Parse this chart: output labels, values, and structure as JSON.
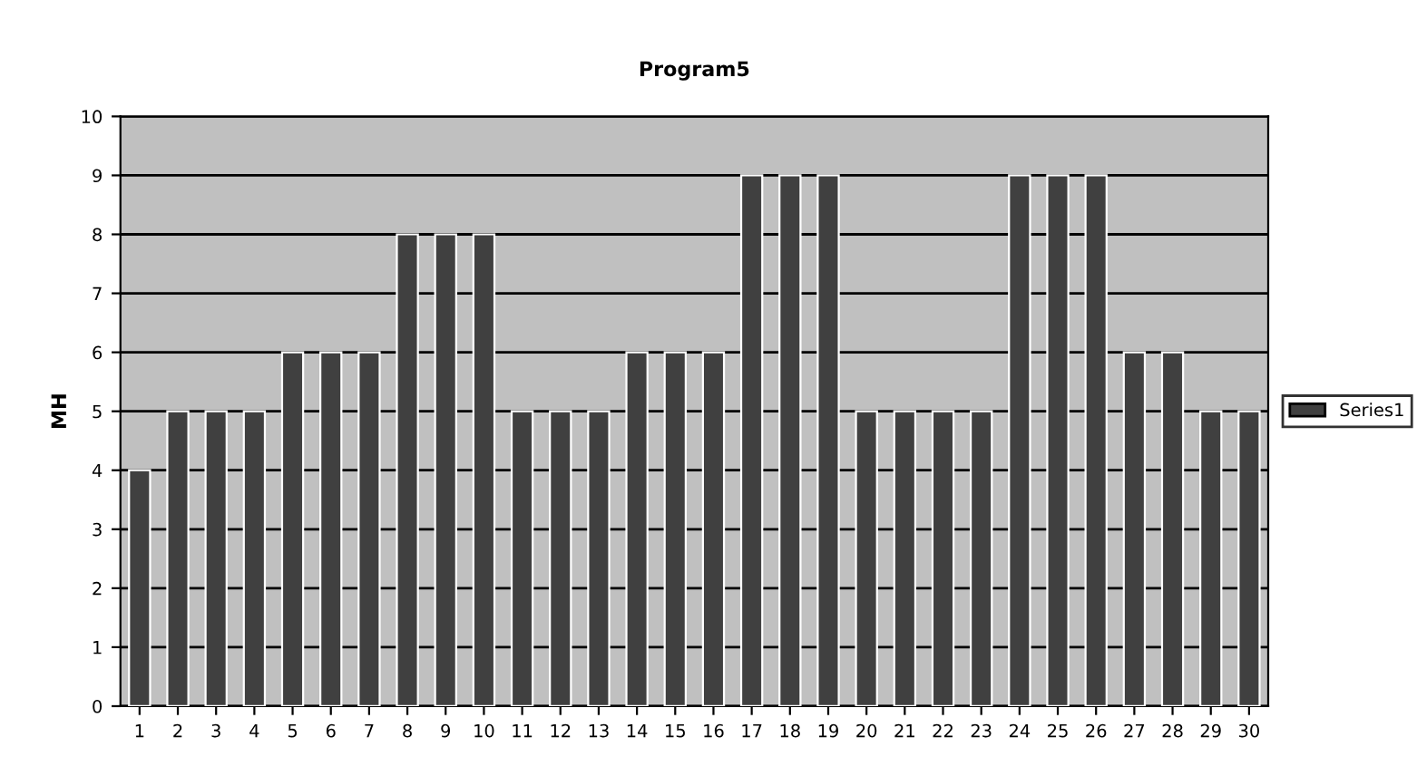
{
  "chart_data": {
    "type": "bar",
    "title": "Program5",
    "ylabel": "MH",
    "categories": [
      "1",
      "2",
      "3",
      "4",
      "5",
      "6",
      "7",
      "8",
      "9",
      "10",
      "11",
      "12",
      "13",
      "14",
      "15",
      "16",
      "17",
      "18",
      "19",
      "20",
      "21",
      "22",
      "23",
      "24",
      "25",
      "26",
      "27",
      "28",
      "29",
      "30"
    ],
    "series": [
      {
        "name": "Series1",
        "color": "#404040",
        "values": [
          4,
          5,
          5,
          5,
          6,
          6,
          6,
          8,
          8,
          8,
          5,
          5,
          5,
          6,
          6,
          6,
          9,
          9,
          9,
          5,
          5,
          5,
          5,
          9,
          9,
          9,
          6,
          6,
          5,
          5
        ]
      }
    ],
    "ylim": [
      0,
      10
    ],
    "yticks": [
      0,
      1,
      2,
      3,
      4,
      5,
      6,
      7,
      8,
      9,
      10
    ],
    "grid": "y",
    "legend": "right"
  }
}
